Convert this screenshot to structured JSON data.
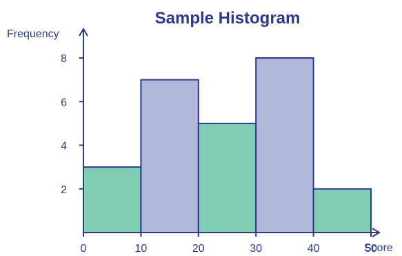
{
  "chart_data": {
    "type": "bar",
    "title": "Sample Histogram",
    "xlabel": "Score",
    "ylabel": "Frequency",
    "bins": [
      {
        "start": 0,
        "end": 10,
        "value": 3
      },
      {
        "start": 10,
        "end": 20,
        "value": 7
      },
      {
        "start": 20,
        "end": 30,
        "value": 5
      },
      {
        "start": 30,
        "end": 40,
        "value": 8
      },
      {
        "start": 40,
        "end": 50,
        "value": 2
      }
    ],
    "x_ticks": [
      "0",
      "10",
      "20",
      "30",
      "40",
      "50"
    ],
    "y_ticks": [
      "2",
      "4",
      "6",
      "8"
    ],
    "xlim": [
      0,
      50
    ],
    "ylim": [
      0,
      8
    ],
    "bar_colors": [
      "#80cdb3",
      "#b0b8d9",
      "#80cdb3",
      "#b0b8d9",
      "#80cdb3"
    ],
    "axis_color": "#2b3990",
    "grid": false
  }
}
